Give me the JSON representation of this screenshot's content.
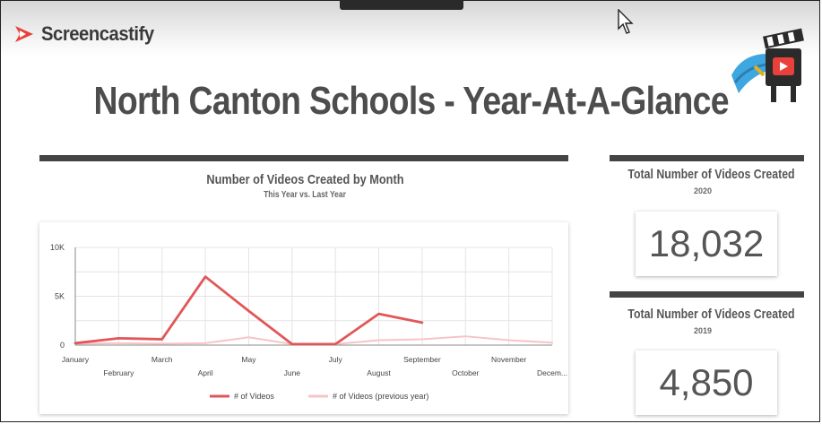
{
  "app": {
    "name": "Screencastify"
  },
  "dashboard": {
    "title": "North Canton Schools - Year-At-A-Glance"
  },
  "chart": {
    "title": "Number of Videos Created by Month",
    "subtitle": "This Year vs. Last Year",
    "legend": [
      "# of Videos",
      "# of Videos (previous year)"
    ]
  },
  "stats": [
    {
      "label": "Total Number of Videos Created",
      "year": "2020",
      "value": "18,032"
    },
    {
      "label": "Total Number of Videos Created",
      "year": "2019",
      "value": "4,850"
    }
  ],
  "colors": {
    "current": "#e15759",
    "previous": "#f7c4c7",
    "rule": "#444444"
  },
  "chart_data": {
    "type": "line",
    "title": "Number of Videos Created by Month",
    "subtitle": "This Year vs. Last Year",
    "categories": [
      "January",
      "February",
      "March",
      "April",
      "May",
      "June",
      "July",
      "August",
      "September",
      "October",
      "November",
      "Decem..."
    ],
    "ytick_labels": [
      "0",
      "5K",
      "10K"
    ],
    "ylim": [
      0,
      10000
    ],
    "series": [
      {
        "name": "# of Videos",
        "values": [
          200,
          700,
          600,
          7000,
          3500,
          100,
          100,
          3200,
          2300,
          null,
          null,
          null
        ]
      },
      {
        "name": "# of Videos (previous year)",
        "values": [
          150,
          200,
          150,
          200,
          800,
          100,
          100,
          500,
          600,
          900,
          500,
          250
        ]
      }
    ],
    "grid": true,
    "legend_position": "bottom"
  }
}
